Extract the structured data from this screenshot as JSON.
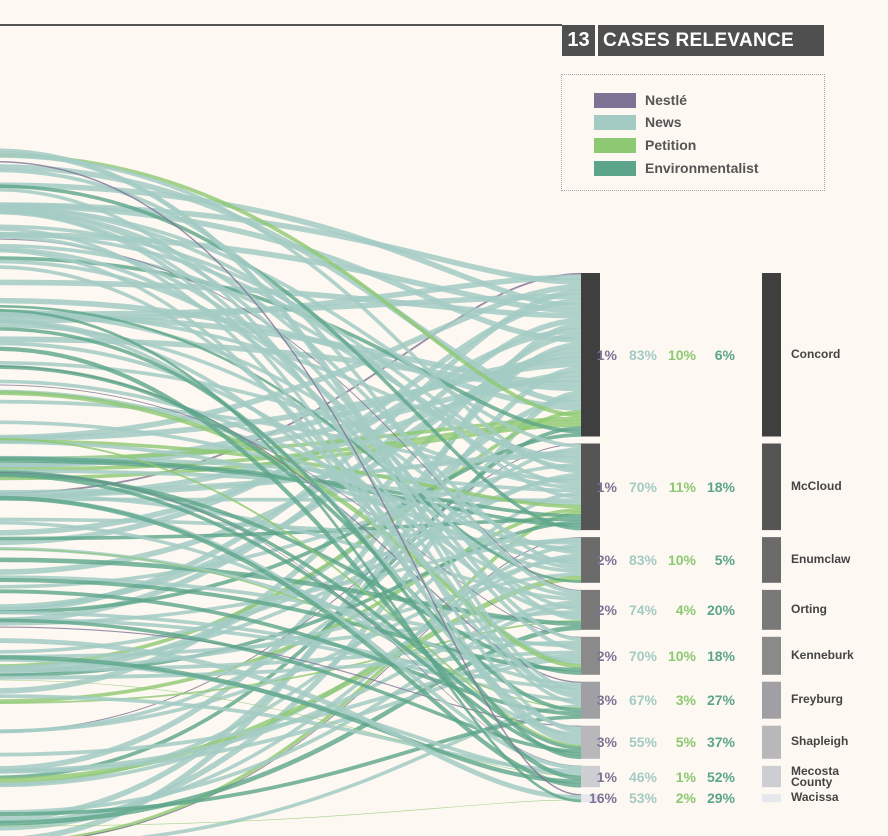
{
  "header": {
    "number": "13",
    "title": "CASES RELEVANCE"
  },
  "chart_data": {
    "type": "sankey",
    "legend": {
      "placement": "top-right"
    },
    "series": [
      {
        "name": "Nestlé",
        "color": "#7e7395"
      },
      {
        "name": "News",
        "color": "#a3cbc4"
      },
      {
        "name": "Petition",
        "color": "#8dc872"
      },
      {
        "name": "Environmentalist",
        "color": "#5ca58a"
      }
    ],
    "cases": [
      {
        "name": "Concord",
        "values": [
          "1%",
          "83%",
          "10%",
          "6%"
        ],
        "shares": [
          0.01,
          0.83,
          0.1,
          0.06
        ],
        "size": 0.168,
        "color": "#3f3f3f"
      },
      {
        "name": "McCloud",
        "values": [
          "1%",
          "70%",
          "11%",
          "18%"
        ],
        "shares": [
          0.01,
          0.7,
          0.11,
          0.18
        ],
        "size": 0.089,
        "color": "#555555"
      },
      {
        "name": "Enumclaw",
        "values": [
          "2%",
          "83%",
          "10%",
          "5%"
        ],
        "shares": [
          0.02,
          0.83,
          0.1,
          0.05
        ],
        "size": 0.047,
        "color": "#6b6b6b"
      },
      {
        "name": "Orting",
        "values": [
          "2%",
          "74%",
          "4%",
          "20%"
        ],
        "shares": [
          0.02,
          0.74,
          0.04,
          0.2
        ],
        "size": 0.041,
        "color": "#797979"
      },
      {
        "name": "Kenneburk",
        "values": [
          "2%",
          "70%",
          "10%",
          "18%"
        ],
        "shares": [
          0.02,
          0.7,
          0.1,
          0.18
        ],
        "size": 0.039,
        "color": "#8a8a8a"
      },
      {
        "name": "Freyburg",
        "values": [
          "3%",
          "67%",
          "3%",
          "27%"
        ],
        "shares": [
          0.03,
          0.67,
          0.03,
          0.27
        ],
        "size": 0.038,
        "color": "#a09fa3"
      },
      {
        "name": "Shapleigh",
        "values": [
          "3%",
          "55%",
          "5%",
          "37%"
        ],
        "shares": [
          0.03,
          0.55,
          0.05,
          0.37
        ],
        "size": 0.034,
        "color": "#b8b8ba"
      },
      {
        "name": "Mecosta County",
        "values": [
          "1%",
          "46%",
          "1%",
          "52%"
        ],
        "shares": [
          0.01,
          0.46,
          0.01,
          0.52
        ],
        "size": 0.022,
        "color": "#cdced1"
      },
      {
        "name": "Wacissa",
        "values": [
          "16%",
          "53%",
          "2%",
          "29%"
        ],
        "shares": [
          0.16,
          0.53,
          0.02,
          0.29
        ],
        "size": 0.008,
        "color": "#e6e8ed"
      }
    ]
  }
}
